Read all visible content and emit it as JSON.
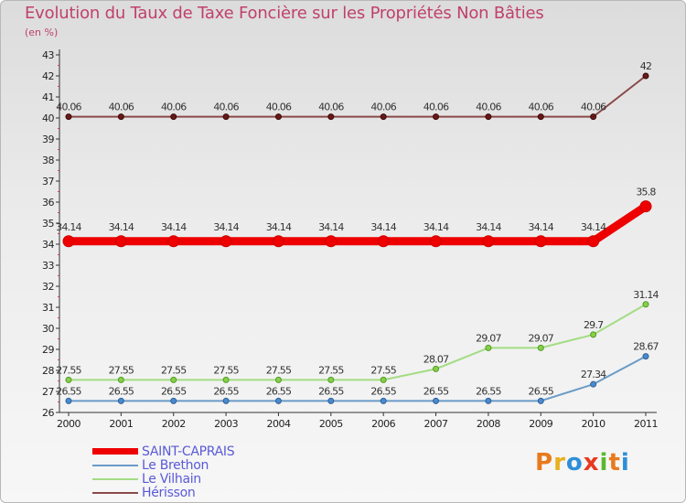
{
  "title": "Evolution du Taux de Taxe Foncière sur les Propriétés Non Bâties",
  "unit_label": "(en %)",
  "logo_text": "Proxiti",
  "chart_data": {
    "type": "line",
    "title": "Evolution du Taux de Taxe Foncière sur les Propriétés Non Bâties",
    "ylabel": "(en %)",
    "xlabel": "",
    "x": [
      "2000",
      "2001",
      "2002",
      "2003",
      "2004",
      "2005",
      "2006",
      "2007",
      "2008",
      "2009",
      "2010",
      "2011"
    ],
    "ylim": [
      26,
      43
    ],
    "yticks": [
      "26",
      "27",
      "28",
      "29",
      "30",
      "31",
      "32",
      "33",
      "34",
      "35",
      "36",
      "37",
      "38",
      "39",
      "40",
      "41",
      "42",
      "43"
    ],
    "grid": false,
    "legend_position": "bottom-left",
    "series": [
      {
        "name": "SAINT-CAPRAIS",
        "color": "#ee0000",
        "marker_fill": "#ee0000",
        "marker_stroke": "#cc0000",
        "emphasis": true,
        "values": [
          34.14,
          34.14,
          34.14,
          34.14,
          34.14,
          34.14,
          34.14,
          34.14,
          34.14,
          34.14,
          34.14,
          35.8
        ],
        "labels": [
          "34.14",
          "34.14",
          "34.14",
          "34.14",
          "34.14",
          "34.14",
          "34.14",
          "34.14",
          "34.14",
          "34.14",
          "34.14",
          "35.8"
        ]
      },
      {
        "name": "Le Brethon",
        "color": "#6a9bc8",
        "marker_fill": "#4a8ad0",
        "marker_stroke": "#2f5f95",
        "emphasis": false,
        "values": [
          26.55,
          26.55,
          26.55,
          26.55,
          26.55,
          26.55,
          26.55,
          26.55,
          26.55,
          26.55,
          27.34,
          28.67
        ],
        "labels": [
          "26.55",
          "26.55",
          "26.55",
          "26.55",
          "26.55",
          "26.55",
          "26.55",
          "26.55",
          "26.55",
          "26.55",
          "27.34",
          "28.67"
        ]
      },
      {
        "name": "Le Vilhain",
        "color": "#a4dc84",
        "marker_fill": "#88d048",
        "marker_stroke": "#4f9a25",
        "emphasis": false,
        "values": [
          27.55,
          27.55,
          27.55,
          27.55,
          27.55,
          27.55,
          27.55,
          28.07,
          29.07,
          29.07,
          29.7,
          31.14
        ],
        "labels": [
          "27.55",
          "27.55",
          "27.55",
          "27.55",
          "27.55",
          "27.55",
          "27.55",
          "28.07",
          "29.07",
          "29.07",
          "29.7",
          "31.14"
        ]
      },
      {
        "name": "Hérisson",
        "color": "#8a4a4a",
        "marker_fill": "#6a1818",
        "marker_stroke": "#3a0a0a",
        "emphasis": false,
        "values": [
          40.06,
          40.06,
          40.06,
          40.06,
          40.06,
          40.06,
          40.06,
          40.06,
          40.06,
          40.06,
          40.06,
          42
        ],
        "labels": [
          "40.06",
          "40.06",
          "40.06",
          "40.06",
          "40.06",
          "40.06",
          "40.06",
          "40.06",
          "40.06",
          "40.06",
          "40.06",
          "42"
        ]
      }
    ]
  },
  "legend": [
    {
      "label": "SAINT-CAPRAIS",
      "color": "#ee0000"
    },
    {
      "label": "Le Brethon",
      "color": "#6a9bc8"
    },
    {
      "label": "Le Vilhain",
      "color": "#a4dc84"
    },
    {
      "label": "Hérisson",
      "color": "#8a4a4a"
    }
  ],
  "logo_colors": [
    "#e87a1e",
    "#e8b01e",
    "#2e8fd8",
    "#e83a1e",
    "#5ab82e",
    "#e87a1e",
    "#2e8fd8"
  ]
}
